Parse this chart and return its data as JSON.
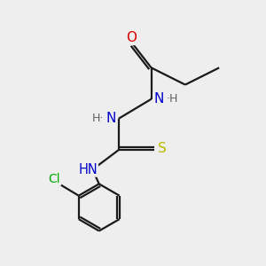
{
  "background_color": "#eeeeee",
  "bond_color": "#1a1a1a",
  "atom_colors": {
    "O": "#dd0000",
    "N": "#0000cc",
    "S": "#bbbb00",
    "Cl": "#00aa00",
    "C": "#1a1a1a",
    "H": "#606060"
  },
  "figsize": [
    3.0,
    3.0
  ],
  "dpi": 100,
  "xlim": [
    0,
    10
  ],
  "ylim": [
    0,
    10
  ]
}
